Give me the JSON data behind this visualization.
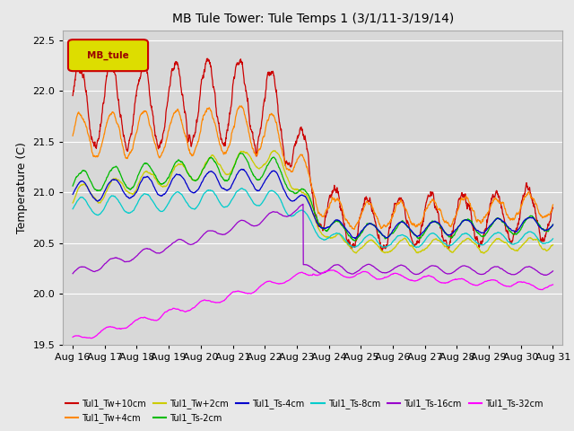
{
  "title": "MB Tule Tower: Tule Temps 1 (3/1/11-3/19/14)",
  "ylabel": "Temperature (C)",
  "ylim": [
    19.5,
    22.6
  ],
  "background_color": "#e8e8e8",
  "plot_bg_color": "#d8d8d8",
  "legend_label": "MB_tule",
  "x_tick_labels": [
    "Aug 16",
    "Aug 17",
    "Aug 18",
    "Aug 19",
    "Aug 20",
    "Aug 21",
    "Aug 22",
    "Aug 23",
    "Aug 24",
    "Aug 25",
    "Aug 26",
    "Aug 27",
    "Aug 28",
    "Aug 29",
    "Aug 30",
    "Aug 31"
  ],
  "series_colors": {
    "Tul1_Tw+10cm": "#cc0000",
    "Tul1_Tw+4cm": "#ff8800",
    "Tul1_Tw+2cm": "#cccc00",
    "Tul1_Ts-2cm": "#00bb00",
    "Tul1_Ts-4cm": "#0000cc",
    "Tul1_Ts-8cm": "#00cccc",
    "Tul1_Ts-16cm": "#9900cc",
    "Tul1_Ts-32cm": "#ff00ff"
  },
  "legend_ncol": 6,
  "legend_row2": [
    "Tul1_Ts-16cm",
    "Tul1_Ts-32cm"
  ]
}
